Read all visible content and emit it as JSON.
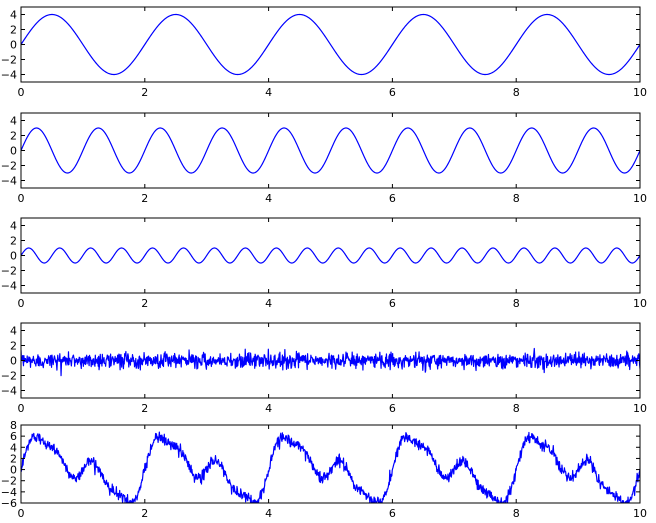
{
  "chart_data": [
    {
      "type": "line",
      "title": "",
      "xlabel": "",
      "ylabel": "",
      "xlim": [
        0,
        10
      ],
      "ylim": [
        -5,
        5
      ],
      "xticks": [
        0,
        2,
        4,
        6,
        8,
        10
      ],
      "yticks": [
        -4,
        -2,
        0,
        2,
        4
      ],
      "grid": false,
      "series": [
        {
          "kind": "sine",
          "amplitude": 4,
          "frequency": 1,
          "color": "#0000ff"
        }
      ]
    },
    {
      "type": "line",
      "title": "",
      "xlabel": "",
      "ylabel": "",
      "xlim": [
        0,
        10
      ],
      "ylim": [
        -5,
        5
      ],
      "xticks": [
        0,
        2,
        4,
        6,
        8,
        10
      ],
      "yticks": [
        -4,
        -2,
        0,
        2,
        4
      ],
      "grid": false,
      "series": [
        {
          "kind": "sine",
          "amplitude": 3,
          "frequency": 2,
          "color": "#0000ff"
        }
      ]
    },
    {
      "type": "line",
      "title": "",
      "xlabel": "",
      "ylabel": "",
      "xlim": [
        0,
        10
      ],
      "ylim": [
        -5,
        5
      ],
      "xticks": [
        0,
        2,
        4,
        6,
        8,
        10
      ],
      "yticks": [
        -4,
        -2,
        0,
        2,
        4
      ],
      "grid": false,
      "series": [
        {
          "kind": "sine",
          "amplitude": 1,
          "frequency": 4,
          "color": "#0000ff"
        }
      ]
    },
    {
      "type": "line",
      "title": "",
      "xlabel": "",
      "ylabel": "",
      "xlim": [
        0,
        10
      ],
      "ylim": [
        -5,
        5
      ],
      "xticks": [
        0,
        2,
        4,
        6,
        8,
        10
      ],
      "yticks": [
        -4,
        -2,
        0,
        2,
        4
      ],
      "grid": false,
      "series": [
        {
          "kind": "noise",
          "std": 0.5,
          "color": "#0000ff"
        }
      ]
    },
    {
      "type": "line",
      "title": "",
      "xlabel": "",
      "ylabel": "",
      "xlim": [
        0,
        10
      ],
      "ylim": [
        -6,
        8
      ],
      "xticks": [
        0,
        2,
        4,
        6,
        8,
        10
      ],
      "yticks": [
        -6,
        -4,
        -2,
        0,
        2,
        4,
        6,
        8
      ],
      "grid": false,
      "series": [
        {
          "kind": "sum_of_above_plus_noise",
          "components": [
            {
              "amplitude": 4,
              "frequency": 1
            },
            {
              "amplitude": 3,
              "frequency": 2
            },
            {
              "amplitude": 1,
              "frequency": 4
            }
          ],
          "noise_std": 0.5,
          "color": "#0000ff"
        }
      ]
    }
  ]
}
